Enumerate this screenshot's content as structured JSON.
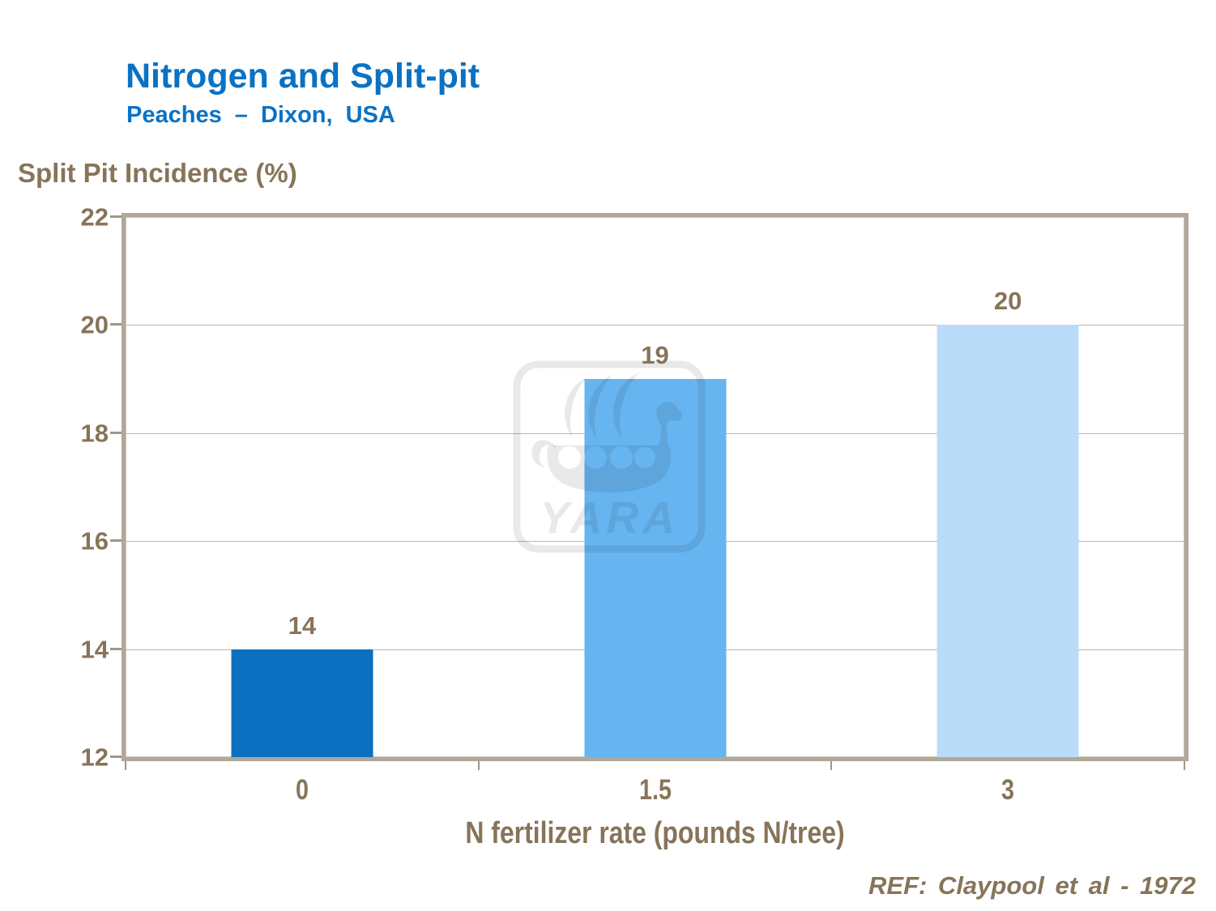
{
  "slide": {
    "title": "Nitrogen and Split-pit",
    "subtitle": "Peaches – Dixon, USA",
    "reference": "REF:  Claypool et al - 1972"
  },
  "watermark": {
    "wordmark": "YARA",
    "icon": "viking-ship-icon"
  },
  "colors": {
    "title_blue": "#0a72c4",
    "text_brown": "#877459",
    "plot_border": "#b1a79a",
    "grid_line": "#c2b5a5",
    "bar_dark_blue": "#0c70c0",
    "bar_medium_blue": "#66b4f0",
    "bar_light_blue": "#badcf8"
  },
  "chart_data": {
    "type": "bar",
    "title": "Nitrogen and Split-pit",
    "subtitle": "Peaches – Dixon, USA",
    "categories": [
      "0",
      "1.5",
      "3"
    ],
    "values": [
      14,
      19,
      20
    ],
    "bar_colors": [
      "#0c70c0",
      "#66b4f0",
      "#badcf8"
    ],
    "xlabel": "N fertilizer rate (pounds N/tree)",
    "ylabel": "Split Pit Incidence (%)",
    "ylim": [
      12,
      22
    ],
    "yticks": [
      12,
      14,
      16,
      18,
      20,
      22
    ],
    "grid": true,
    "legend": false,
    "data_labels": true
  }
}
